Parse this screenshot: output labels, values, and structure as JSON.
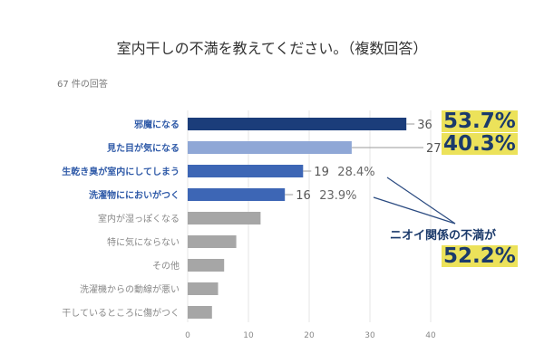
{
  "title": "室内干しの不満を教えてください。（複数回答）",
  "responses": "67 件の回答",
  "callouts": {
    "top1": "53.7%",
    "top2": "40.3%",
    "odor_label": "ニオイ関係の不満が",
    "odor_value": "52.2%"
  },
  "chart_data": {
    "type": "bar",
    "orientation": "horizontal",
    "categories": [
      "邪魔になる",
      "見た目が気になる",
      "生乾き臭が室内にしてしまう",
      "洗濯物ににおいがつく",
      "室内が湿っぽくなる",
      "特に気にならない",
      "その他",
      "洗濯機からの動線が悪い",
      "干しているところに傷がつく"
    ],
    "values": [
      36,
      27,
      19,
      16,
      12,
      8,
      6,
      5,
      4
    ],
    "data_labels": [
      "36",
      "27",
      "19",
      "16",
      "",
      "",
      "",
      "",
      ""
    ],
    "percent_labels": [
      "",
      "",
      "28.4%",
      "23.9%",
      "",
      "",
      "",
      "",
      ""
    ],
    "colors": [
      "#1b3d7a",
      "#8fa7d6",
      "#3d66b5",
      "#3d66b5",
      "#a6a6a6",
      "#a6a6a6",
      "#a6a6a6",
      "#a6a6a6",
      "#a6a6a6"
    ],
    "highlight_label_color": "#2f5aa8",
    "xlim": [
      0,
      40
    ],
    "xticks": [
      "0",
      "10",
      "20",
      "30",
      "40"
    ],
    "grid": true
  }
}
